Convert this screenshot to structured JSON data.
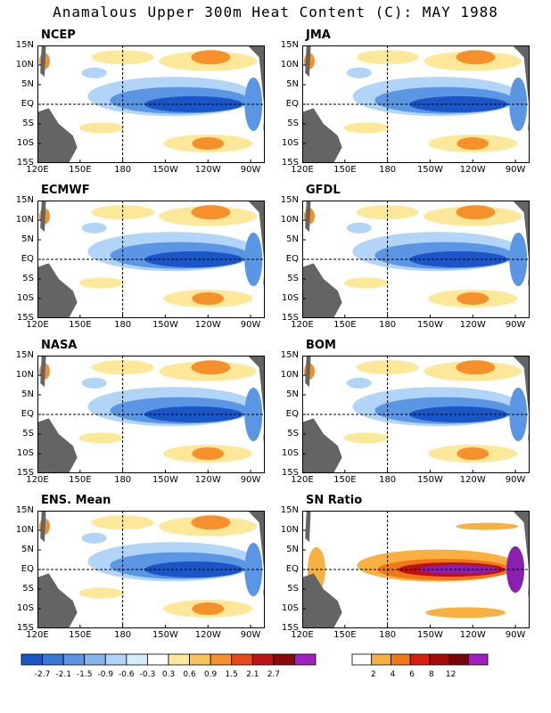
{
  "title": "Anamalous Upper 300m Heat Content (C): MAY 1988",
  "panels": [
    {
      "name": "NCEP"
    },
    {
      "name": "JMA"
    },
    {
      "name": "ECMWF"
    },
    {
      "name": "GFDL"
    },
    {
      "name": "NASA"
    },
    {
      "name": "BOM"
    },
    {
      "name": "ENS. Mean"
    },
    {
      "name": "SN Ratio"
    }
  ],
  "lat_ticks": [
    "15N",
    "10N",
    "5N",
    "EQ",
    "5S",
    "10S",
    "15S"
  ],
  "lon_ticks": [
    "120E",
    "150E",
    "180",
    "150W",
    "120W",
    "90W"
  ],
  "anomaly_colorbar": {
    "labels": [
      "-2.7",
      "-2.1",
      "-1.5",
      "-0.9",
      "-0.6",
      "-0.3",
      "0.3",
      "0.6",
      "0.9",
      "1.5",
      "2.1",
      "2.7"
    ],
    "colors": [
      "#1a56c8",
      "#3a78d8",
      "#5a96e4",
      "#86b4ee",
      "#b2d4f6",
      "#d6ecfa",
      "#ffffff",
      "#fde89a",
      "#fbc45a",
      "#f6902a",
      "#e84a1a",
      "#c01414",
      "#8a0808",
      "#a020c0"
    ]
  },
  "sn_colorbar": {
    "labels": [
      "2",
      "4",
      "6",
      "8",
      "12"
    ],
    "colors": [
      "#ffffff",
      "#f8b040",
      "#f07818",
      "#d82010",
      "#a80a0a",
      "#780606",
      "#a020c0"
    ]
  },
  "colors": {
    "land": "#646464",
    "neg_strong": "#1a56c8",
    "neg_mid": "#5a96e4",
    "neg_weak": "#b2d4f6",
    "pos_weak": "#fde89a",
    "pos_mid": "#f6902a",
    "pos_strong": "#e84a1a",
    "sn_purple": "#8a20b0",
    "sn_red": "#c01010"
  }
}
